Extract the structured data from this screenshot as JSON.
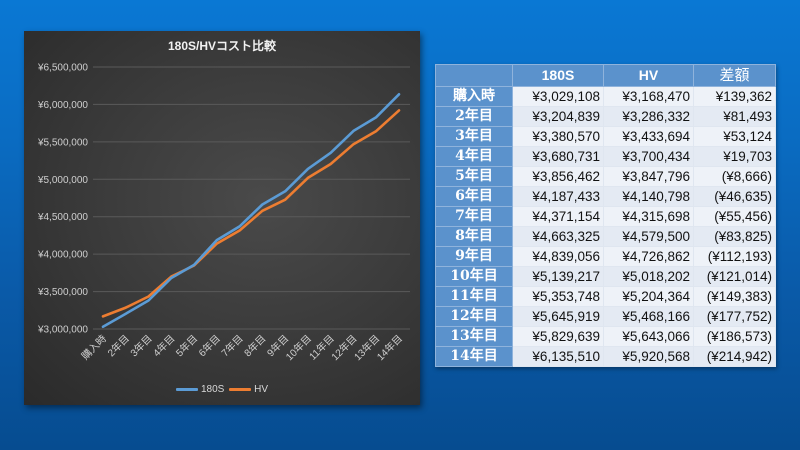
{
  "chart": {
    "title": "180S/HVコスト比較",
    "y_ticks": [
      "¥6,500,000",
      "¥6,000,000",
      "¥5,500,000",
      "¥5,000,000",
      "¥4,500,000",
      "¥4,000,000",
      "¥3,500,000",
      "¥3,000,000"
    ],
    "legend": [
      {
        "name": "180S",
        "color": "#5b9bd5"
      },
      {
        "name": "HV",
        "color": "#ed7d31"
      }
    ]
  },
  "chart_data": {
    "type": "line",
    "title": "180S/HVコスト比較",
    "xlabel": "",
    "ylabel": "",
    "categories": [
      "購入時",
      "2年目",
      "3年目",
      "4年目",
      "5年目",
      "6年目",
      "7年目",
      "8年目",
      "9年目",
      "10年目",
      "11年目",
      "12年目",
      "13年目",
      "14年目"
    ],
    "series": [
      {
        "name": "180S",
        "color": "#5b9bd5",
        "values": [
          3029108,
          3204839,
          3380570,
          3680731,
          3856462,
          4187433,
          4371154,
          4663325,
          4839056,
          5139217,
          5353748,
          5645919,
          5829639,
          6135510
        ]
      },
      {
        "name": "HV",
        "color": "#ed7d31",
        "values": [
          3168470,
          3286332,
          3433694,
          3700434,
          3847796,
          4140798,
          4315698,
          4579500,
          4726862,
          5018202,
          5204364,
          5468166,
          5643066,
          5920568
        ]
      }
    ],
    "ylim": [
      3000000,
      6500000
    ],
    "y_tick_step": 500000,
    "grid": true,
    "legend_position": "bottom"
  },
  "table": {
    "headers": [
      "",
      "180S",
      "HV",
      "差額"
    ],
    "rows": [
      {
        "label": "購入時",
        "s180": "¥3,029,108",
        "hv": "¥3,168,470",
        "diff": "¥139,362",
        "negative": false
      },
      {
        "label": "2年目",
        "s180": "¥3,204,839",
        "hv": "¥3,286,332",
        "diff": "¥81,493",
        "negative": false
      },
      {
        "label": "3年目",
        "s180": "¥3,380,570",
        "hv": "¥3,433,694",
        "diff": "¥53,124",
        "negative": false
      },
      {
        "label": "4年目",
        "s180": "¥3,680,731",
        "hv": "¥3,700,434",
        "diff": "¥19,703",
        "negative": false
      },
      {
        "label": "5年目",
        "s180": "¥3,856,462",
        "hv": "¥3,847,796",
        "diff": "(¥8,666)",
        "negative": true
      },
      {
        "label": "6年目",
        "s180": "¥4,187,433",
        "hv": "¥4,140,798",
        "diff": "(¥46,635)",
        "negative": true
      },
      {
        "label": "7年目",
        "s180": "¥4,371,154",
        "hv": "¥4,315,698",
        "diff": "(¥55,456)",
        "negative": true
      },
      {
        "label": "8年目",
        "s180": "¥4,663,325",
        "hv": "¥4,579,500",
        "diff": "(¥83,825)",
        "negative": true
      },
      {
        "label": "9年目",
        "s180": "¥4,839,056",
        "hv": "¥4,726,862",
        "diff": "(¥112,193)",
        "negative": true
      },
      {
        "label": "10年目",
        "s180": "¥5,139,217",
        "hv": "¥5,018,202",
        "diff": "(¥121,014)",
        "negative": true
      },
      {
        "label": "11年目",
        "s180": "¥5,353,748",
        "hv": "¥5,204,364",
        "diff": "(¥149,383)",
        "negative": true
      },
      {
        "label": "12年目",
        "s180": "¥5,645,919",
        "hv": "¥5,468,166",
        "diff": "(¥177,752)",
        "negative": true
      },
      {
        "label": "13年目",
        "s180": "¥5,829,639",
        "hv": "¥5,643,066",
        "diff": "(¥186,573)",
        "negative": true
      },
      {
        "label": "14年目",
        "s180": "¥6,135,510",
        "hv": "¥5,920,568",
        "diff": "(¥214,942)",
        "negative": true
      }
    ]
  }
}
